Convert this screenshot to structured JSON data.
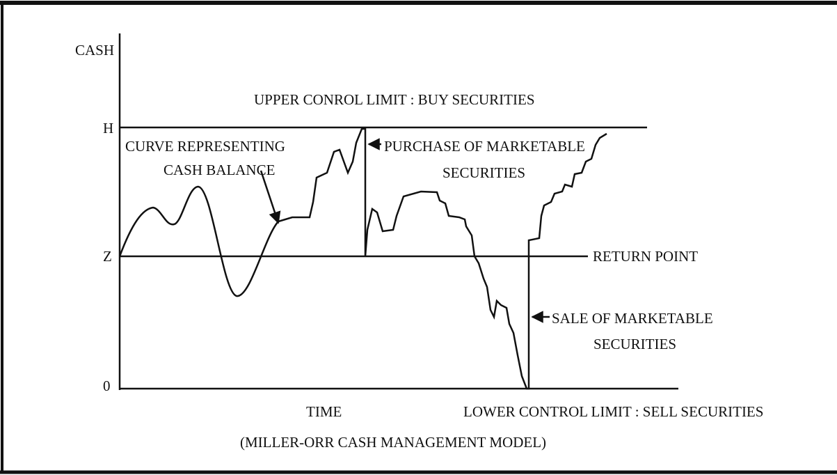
{
  "axis": {
    "y_label": "CASH",
    "x_label": "TIME",
    "levels": [
      "H",
      "Z",
      "0"
    ]
  },
  "limits": {
    "upper": "UPPER CONROL LIMIT : BUY SECURITIES",
    "return": "RETURN POINT",
    "lower": "LOWER CONTROL LIMIT : SELL SECURITIES"
  },
  "annotations": [
    {
      "lines": [
        "CURVE REPRESENTING",
        "CASH BALANCE"
      ]
    },
    {
      "lines": [
        "PURCHASE OF MARKETABLE",
        "SECURITIES"
      ]
    },
    {
      "lines": [
        "SALE OF MARKETABLE",
        "SECURITIES"
      ]
    }
  ],
  "caption": "(MILLER-ORR CASH MANAGEMENT MODEL)"
}
